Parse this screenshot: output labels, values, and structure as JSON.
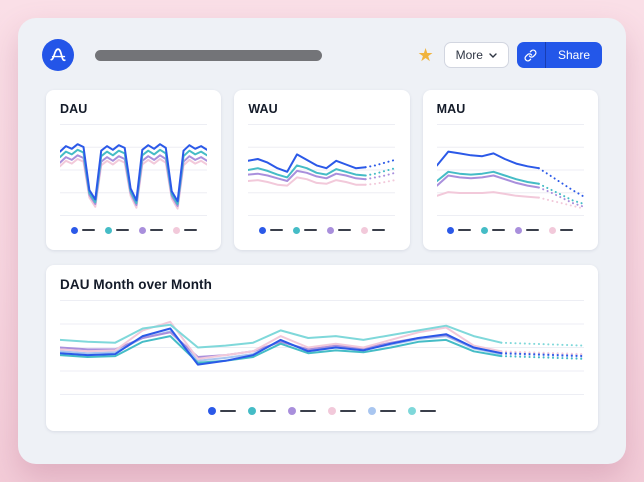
{
  "header": {
    "logo_name": "amplitude-logo",
    "title_placeholder": "redacted-title-bar",
    "favorite_icon": "star-icon",
    "more_label": "More",
    "share_label": "Share",
    "share_icon": "link-icon",
    "colors": {
      "star": "#F0B43E",
      "share_bg": "#2357E9",
      "logo_bg": "#2355E8"
    }
  },
  "chart_data": [
    {
      "id": "dau",
      "type": "line",
      "title": "DAU",
      "axes_hidden": true,
      "grid_lines": 5,
      "grid_color": "#EDEEF4",
      "units": "relative_0_100",
      "legend_labels_visible": false,
      "legend_order": [
        "blue",
        "teal",
        "purple",
        "pink"
      ],
      "series": [
        {
          "name": "pink",
          "color": "#F2C9DA",
          "values": [
            54,
            60,
            57,
            62,
            59,
            20,
            10,
            55,
            60,
            56,
            61,
            58,
            22,
            9,
            56,
            61,
            57,
            62,
            58,
            19,
            8,
            55,
            61,
            57,
            60,
            56
          ],
          "forecast": []
        },
        {
          "name": "purple",
          "color": "#A98FDC",
          "values": [
            58,
            64,
            61,
            66,
            63,
            23,
            13,
            59,
            64,
            60,
            65,
            62,
            25,
            12,
            60,
            65,
            61,
            66,
            62,
            22,
            11,
            59,
            65,
            61,
            64,
            60
          ],
          "forecast": []
        },
        {
          "name": "teal",
          "color": "#45BCC6",
          "values": [
            64,
            70,
            67,
            72,
            69,
            25,
            15,
            65,
            70,
            66,
            71,
            68,
            27,
            14,
            66,
            71,
            67,
            72,
            68,
            24,
            13,
            65,
            71,
            67,
            70,
            66
          ],
          "forecast": []
        },
        {
          "name": "blue",
          "color": "#2B59E8",
          "values": [
            70,
            76,
            73,
            78,
            75,
            28,
            18,
            71,
            76,
            72,
            77,
            74,
            30,
            17,
            72,
            77,
            73,
            78,
            74,
            27,
            16,
            71,
            77,
            73,
            76,
            72
          ],
          "forecast": []
        }
      ]
    },
    {
      "id": "wau",
      "type": "line",
      "title": "WAU",
      "axes_hidden": true,
      "grid_lines": 5,
      "grid_color": "#EDEEF4",
      "units": "relative_0_100",
      "legend_labels_visible": false,
      "legend_order": [
        "blue",
        "teal",
        "purple",
        "pink"
      ],
      "series": [
        {
          "name": "pink",
          "color": "#F2C9DA",
          "values": [
            38,
            39,
            37,
            34,
            33,
            42,
            40,
            36,
            35,
            39,
            37,
            34,
            34
          ],
          "forecast": [
            35,
            37,
            39
          ]
        },
        {
          "name": "purple",
          "color": "#A98FDC",
          "values": [
            45,
            46,
            44,
            41,
            38,
            49,
            47,
            43,
            41,
            46,
            44,
            41,
            40
          ],
          "forecast": [
            42,
            44,
            47
          ]
        },
        {
          "name": "teal",
          "color": "#45BCC6",
          "values": [
            50,
            52,
            49,
            45,
            42,
            55,
            52,
            47,
            45,
            51,
            48,
            45,
            44
          ],
          "forecast": [
            46,
            49,
            52
          ]
        },
        {
          "name": "blue",
          "color": "#2B59E8",
          "values": [
            60,
            62,
            58,
            52,
            48,
            67,
            61,
            55,
            52,
            60,
            56,
            52,
            53
          ],
          "forecast": [
            55,
            58,
            61
          ]
        }
      ]
    },
    {
      "id": "mau",
      "type": "line",
      "title": "MAU",
      "axes_hidden": true,
      "grid_lines": 5,
      "grid_color": "#EDEEF4",
      "units": "relative_0_100",
      "legend_labels_visible": false,
      "legend_order": [
        "blue",
        "teal",
        "purple",
        "pink"
      ],
      "series": [
        {
          "name": "pink",
          "color": "#F2C9DA",
          "values": [
            22,
            26,
            25,
            25,
            25,
            26,
            24,
            22,
            21,
            20
          ],
          "forecast": [
            17,
            14,
            11,
            8
          ]
        },
        {
          "name": "purple",
          "color": "#A98FDC",
          "values": [
            33,
            44,
            42,
            41,
            42,
            44,
            40,
            36,
            33,
            31
          ],
          "forecast": [
            26,
            20,
            14,
            10
          ]
        },
        {
          "name": "teal",
          "color": "#45BCC6",
          "values": [
            38,
            48,
            46,
            45,
            46,
            48,
            44,
            40,
            37,
            35
          ],
          "forecast": [
            29,
            23,
            17,
            13
          ]
        },
        {
          "name": "blue",
          "color": "#2B59E8",
          "values": [
            55,
            70,
            68,
            66,
            65,
            68,
            62,
            57,
            54,
            52
          ],
          "forecast": [
            44,
            36,
            28,
            21
          ]
        }
      ]
    },
    {
      "id": "dau_mom",
      "type": "line",
      "title": "DAU Month over Month",
      "axes_hidden": true,
      "grid_lines": 5,
      "grid_color": "#EDEEF4",
      "units": "relative_0_100",
      "legend_labels_visible": false,
      "legend_order": [
        "blue",
        "teal",
        "purple",
        "pink",
        "light_blue",
        "light_teal"
      ],
      "series": [
        {
          "name": "light_blue",
          "color": "#A9C6F0",
          "values": [
            46,
            44,
            45,
            60,
            67,
            36,
            39,
            43,
            57,
            47,
            51,
            48,
            53,
            59,
            62,
            49,
            43
          ],
          "forecast": [
            42,
            41,
            40
          ]
        },
        {
          "name": "purple",
          "color": "#A98FDC",
          "values": [
            50,
            48,
            48,
            60,
            66,
            40,
            42,
            46,
            56,
            48,
            52,
            49,
            55,
            60,
            63,
            50,
            45
          ],
          "forecast": [
            44,
            43,
            42
          ]
        },
        {
          "name": "pink",
          "color": "#F2C9DA",
          "values": [
            48,
            46,
            47,
            68,
            77,
            38,
            42,
            46,
            62,
            50,
            54,
            50,
            58,
            66,
            71,
            52,
            46
          ],
          "forecast": [
            45,
            44,
            43
          ]
        },
        {
          "name": "light_teal",
          "color": "#7FD8DA",
          "values": [
            58,
            56,
            55,
            70,
            74,
            50,
            52,
            55,
            68,
            60,
            62,
            58,
            63,
            68,
            73,
            62,
            55
          ],
          "forecast": [
            54,
            53,
            52
          ]
        },
        {
          "name": "teal",
          "color": "#45BCC6",
          "values": [
            42,
            40,
            41,
            56,
            62,
            34,
            36,
            40,
            54,
            44,
            47,
            45,
            50,
            56,
            58,
            46,
            41
          ],
          "forecast": [
            40,
            39,
            38
          ]
        },
        {
          "name": "blue",
          "color": "#2B59E8",
          "values": [
            44,
            42,
            43,
            62,
            70,
            32,
            36,
            42,
            58,
            46,
            50,
            47,
            54,
            60,
            64,
            50,
            44
          ],
          "forecast": [
            43,
            42,
            41
          ]
        }
      ]
    }
  ]
}
